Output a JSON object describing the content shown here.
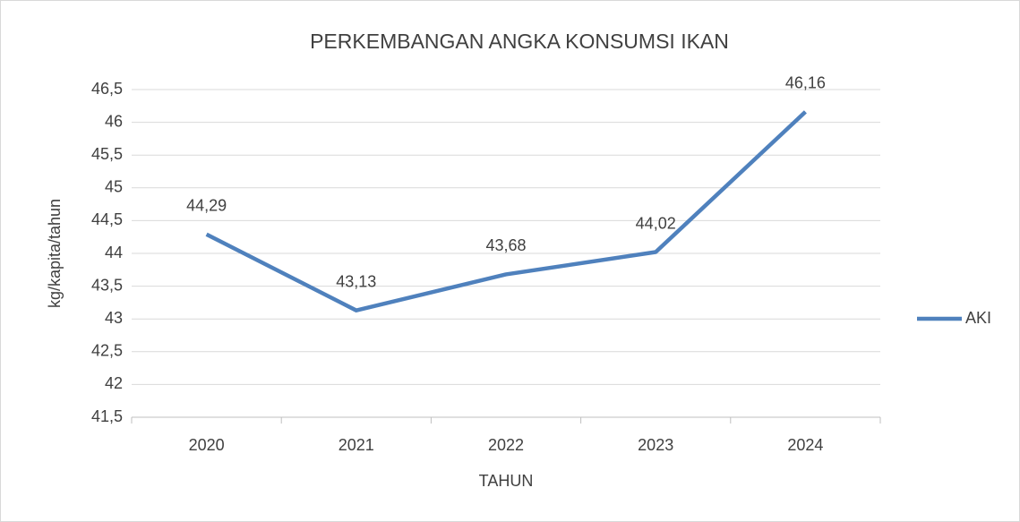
{
  "chart_data": {
    "type": "line",
    "title": "PERKEMBANGAN ANGKA KONSUMSI IKAN",
    "x_label": "TAHUN",
    "y_label": "kg/kapita/tahun",
    "categories": [
      "2020",
      "2021",
      "2022",
      "2023",
      "2024"
    ],
    "series": [
      {
        "name": "AKI",
        "color": "#4f81bd",
        "values": [
          44.29,
          43.13,
          43.68,
          44.02,
          46.16
        ],
        "value_labels": [
          "44,29",
          "43,13",
          "43,68",
          "44,02",
          "46,16"
        ]
      }
    ],
    "ylim": [
      41.5,
      46.5
    ],
    "yticks": [
      {
        "value": 41.5,
        "label": "41,5"
      },
      42,
      {
        "value": 42.5,
        "label": "42,5"
      },
      43,
      {
        "value": 43.5,
        "label": "43,5"
      },
      44,
      {
        "value": 44.5,
        "label": "44,5"
      },
      45,
      {
        "value": 45.5,
        "label": "45,5"
      },
      46,
      {
        "value": 46.5,
        "label": "46,5"
      }
    ],
    "grid": true,
    "legend": "right"
  }
}
